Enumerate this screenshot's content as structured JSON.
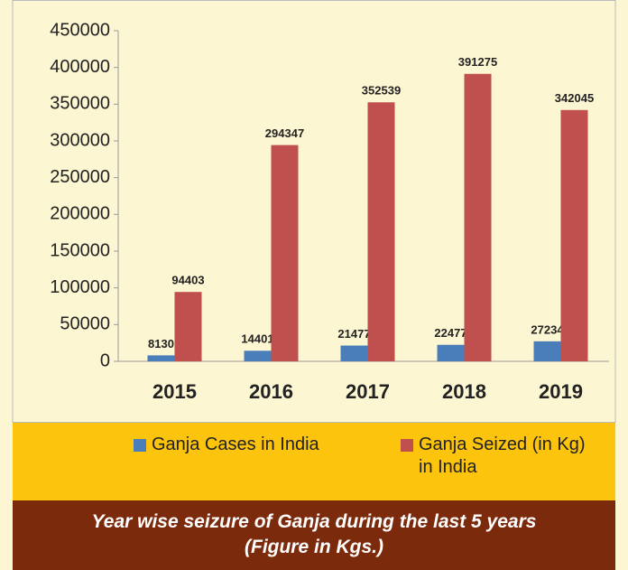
{
  "chart_data": {
    "type": "bar",
    "title": "Year wise seizure of Ganja during the last 5 years",
    "subtitle": "(Figure in Kgs.)",
    "categories": [
      "2015",
      "2016",
      "2017",
      "2018",
      "2019"
    ],
    "series": [
      {
        "name": "Ganja Cases in India",
        "color": "#4a7ebb",
        "values": [
          8130,
          14401,
          21477,
          22477,
          27234
        ]
      },
      {
        "name": "Ganja Seized (in Kg) in India",
        "color": "#c0504d",
        "values": [
          94403,
          294347,
          352539,
          391275,
          342045
        ]
      }
    ],
    "ylim": [
      0,
      450000
    ],
    "yticks": [
      0,
      50000,
      100000,
      150000,
      200000,
      250000,
      300000,
      350000,
      400000,
      450000
    ],
    "grid": false,
    "legend": "bottom"
  }
}
